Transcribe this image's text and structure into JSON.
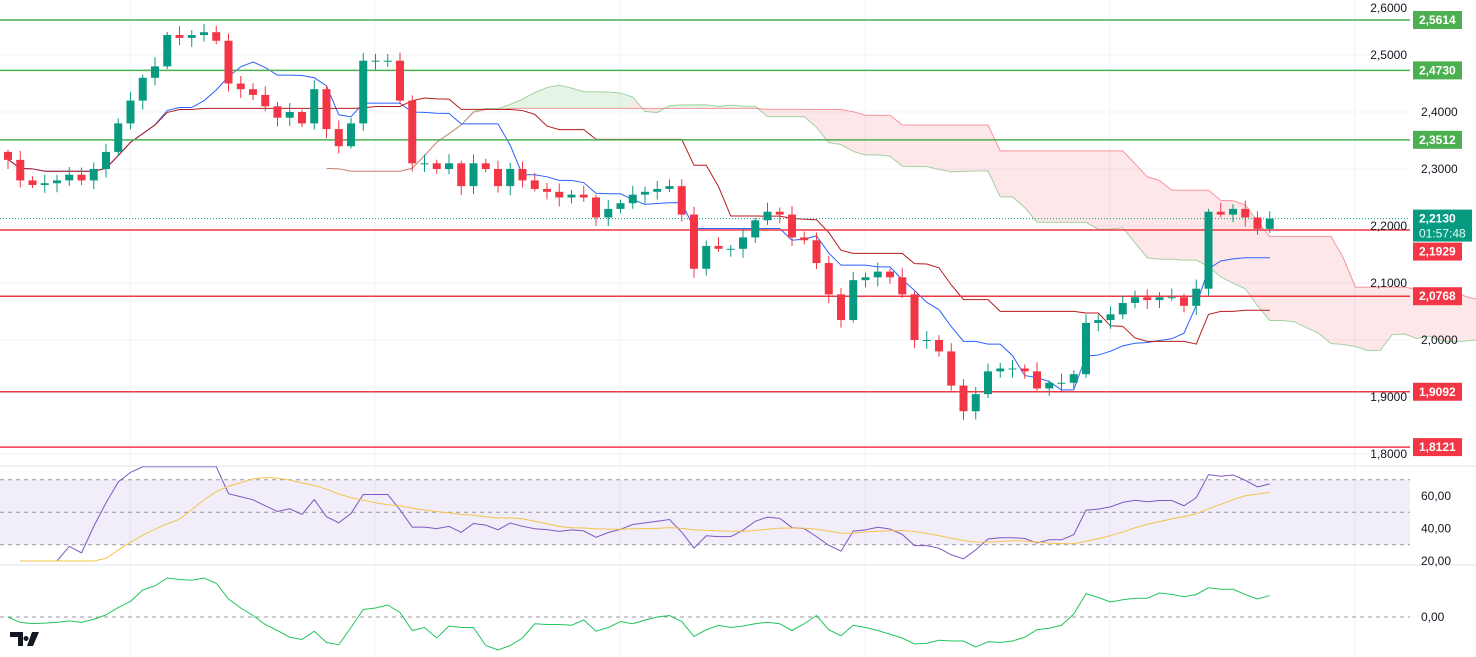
{
  "chart_data": {
    "type": "candlestick",
    "title": "",
    "price_axis": {
      "ylim": [
        1.786,
        2.596
      ],
      "ticks": [
        "2,6000",
        "2,5000",
        "2,4000",
        "2,3000",
        "2,2000",
        "2,1000",
        "2,0000",
        "1,9000",
        "1,8000"
      ],
      "tick_values": [
        2.6,
        2.5,
        2.4,
        2.3,
        2.2,
        2.1,
        2.0,
        1.9,
        1.8
      ]
    },
    "closes": [
      2.316,
      2.28,
      2.272,
      2.275,
      2.28,
      2.29,
      2.28,
      2.3,
      2.33,
      2.38,
      2.42,
      2.46,
      2.48,
      2.535,
      2.53,
      2.535,
      2.54,
      2.525,
      2.45,
      2.44,
      2.43,
      2.41,
      2.39,
      2.4,
      2.38,
      2.44,
      2.37,
      2.34,
      2.38,
      2.49,
      2.49,
      2.49,
      2.42,
      2.31,
      2.31,
      2.3,
      2.31,
      2.27,
      2.31,
      2.3,
      2.27,
      2.3,
      2.28,
      2.265,
      2.26,
      2.25,
      2.255,
      2.25,
      2.215,
      2.23,
      2.24,
      2.255,
      2.26,
      2.265,
      2.27,
      2.22,
      2.125,
      2.165,
      2.16,
      2.16,
      2.18,
      2.21,
      2.225,
      2.22,
      2.18,
      2.175,
      2.135,
      2.08,
      2.035,
      2.105,
      2.11,
      2.12,
      2.11,
      2.08,
      2.0,
      2.0,
      1.98,
      1.92,
      1.875,
      1.905,
      1.945,
      1.95,
      1.95,
      1.945,
      1.915,
      1.925,
      1.925,
      1.94,
      2.03,
      2.035,
      2.045,
      2.065,
      2.075,
      2.07,
      2.075,
      2.075,
      2.06,
      2.09,
      2.225,
      2.22,
      2.23,
      2.215,
      2.195,
      2.213
    ],
    "first_open": 2.33,
    "levels": [
      {
        "value": 2.5614,
        "label": "2,5614",
        "color": "#4CAF50"
      },
      {
        "value": 2.473,
        "label": "2,4730",
        "color": "#4CAF50"
      },
      {
        "value": 2.3512,
        "label": "2,3512",
        "color": "#4CAF50"
      },
      {
        "value": 2.1929,
        "label": "2,1929",
        "color": "#F23645"
      },
      {
        "value": 2.0768,
        "label": "2,0768",
        "color": "#F23645"
      },
      {
        "value": 1.9092,
        "label": "1,9092",
        "color": "#F23645"
      },
      {
        "value": 1.8121,
        "label": "1,8121",
        "color": "#F23645"
      }
    ],
    "current_price": {
      "value": 2.213,
      "label": "2,2130",
      "countdown": "01:57:48",
      "color": "#089981"
    },
    "indicators": {
      "ichimoku": {
        "tenkan_color": "#2962FF",
        "kijun_color": "#B71C1C",
        "bull_cloud": "#4CAF50",
        "bear_cloud": "#F23645"
      },
      "rsi": {
        "ticks": [
          "60,00",
          "40,00",
          "20,00"
        ],
        "tick_values": [
          60,
          40,
          20
        ],
        "upper": 70,
        "lower": 30,
        "line_color": "#7E57C2",
        "ma_color": "#F5C34D"
      },
      "momentum": {
        "ticks": [
          "0,00"
        ],
        "tick_values": [
          0
        ],
        "line_color": "#22C55E"
      }
    },
    "colors": {
      "up": "#089981",
      "down": "#F23645"
    }
  },
  "branding": {
    "logo": "TV"
  }
}
